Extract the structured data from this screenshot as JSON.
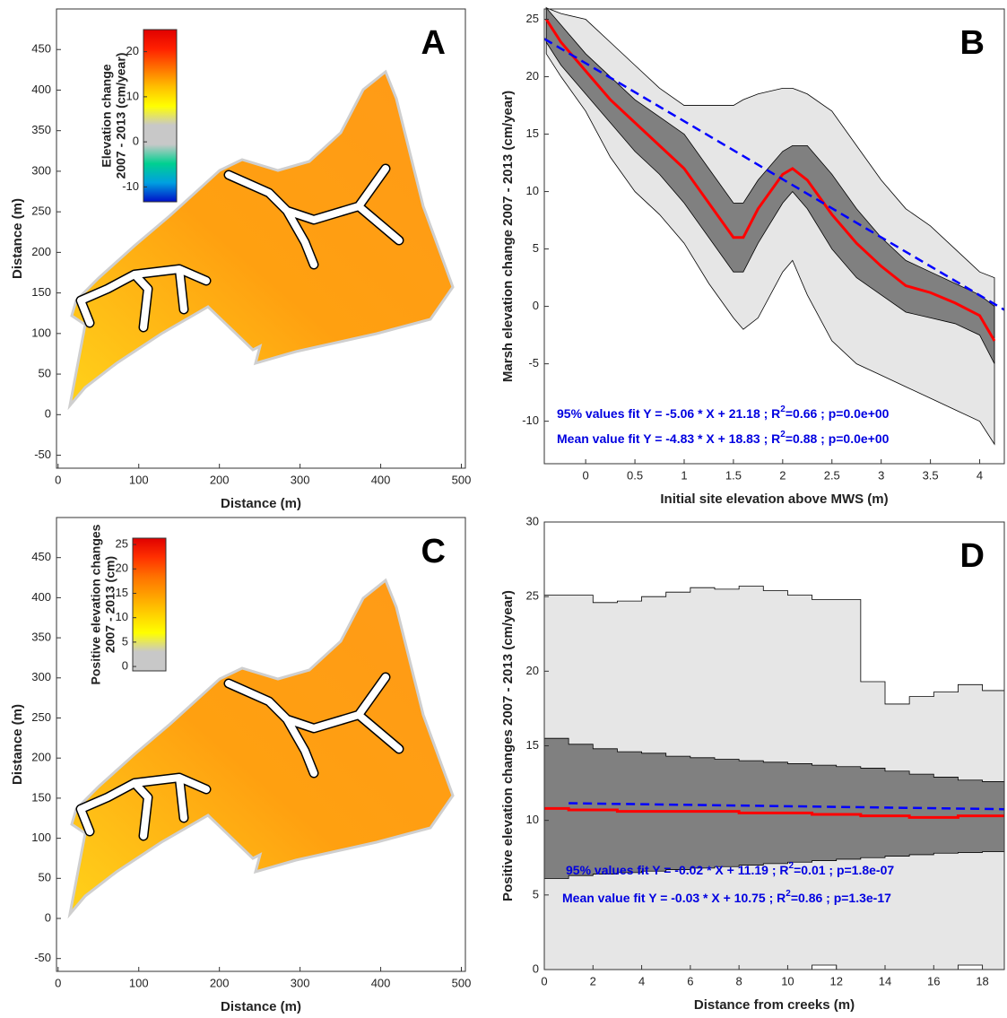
{
  "chart_data": [
    {
      "type": "map",
      "panel_label": "A",
      "xlabel": "Distance (m)",
      "ylabel": "Distance (m)",
      "xlim": [
        -2,
        505
      ],
      "xticks": [
        0,
        100,
        200,
        300,
        400,
        500
      ],
      "ylim": [
        -66,
        500
      ],
      "yticks": [
        -50,
        0,
        50,
        100,
        150,
        200,
        250,
        300,
        350,
        400,
        450
      ],
      "colorbar_label": [
        "Elevation change",
        "2007 - 2013 (cm/year)"
      ],
      "clim": [
        -13.3,
        24.9
      ],
      "cticks": [
        -10,
        0,
        10,
        20
      ],
      "colormap": [
        "#0010c8",
        "#00a0e0",
        "#00d090",
        "#c8c8c8",
        "#c8c8c8",
        "#ffff00",
        "#ffc000",
        "#ff7000",
        "#ff2000",
        "#e00000"
      ]
    },
    {
      "type": "line",
      "panel_label": "B",
      "xlabel": "Initial site elevation above MWS (m)",
      "ylabel": "Marsh elevation change 2007 - 2013 (cm/year)",
      "xlim": [
        -0.42,
        4.25
      ],
      "xticks": [
        0,
        0.5,
        1,
        1.5,
        2,
        2.5,
        3,
        3.5,
        4
      ],
      "ylim": [
        -13.7,
        25.9
      ],
      "yticks": [
        -10,
        -5,
        0,
        5,
        10,
        15,
        20,
        25
      ],
      "x": [
        -0.4,
        -0.25,
        0,
        0.25,
        0.5,
        0.75,
        1,
        1.25,
        1.5,
        1.6,
        1.75,
        2,
        2.1,
        2.25,
        2.5,
        2.75,
        3,
        3.25,
        3.5,
        3.75,
        4,
        4.15
      ],
      "bands": [
        {
          "color": "#e6e6e6",
          "upper": [
            26,
            25.5,
            25,
            23,
            21,
            19,
            17.5,
            17.5,
            17.5,
            18,
            18.5,
            19,
            19,
            18.5,
            17,
            14,
            11,
            8.5,
            7,
            5,
            3,
            2.5
          ],
          "lower": [
            22,
            20,
            17,
            13,
            10,
            8,
            5.5,
            2,
            -1,
            -2,
            -1,
            3,
            4,
            1,
            -3,
            -5,
            -6,
            -7,
            -8,
            -9,
            -10,
            -12
          ]
        },
        {
          "color": "#808080",
          "upper": [
            26,
            24.5,
            22,
            20,
            18,
            16.5,
            15,
            12,
            9,
            9,
            11,
            13.5,
            14,
            14,
            11.5,
            8.5,
            6,
            4,
            3,
            2,
            1,
            0
          ],
          "lower": [
            23,
            21,
            18.5,
            16,
            13.5,
            11.5,
            9,
            6,
            3,
            3,
            5.5,
            9,
            10,
            8.5,
            5,
            2.5,
            1,
            -0.5,
            -1,
            -1.5,
            -2.5,
            -5
          ]
        }
      ],
      "mean": {
        "color": "#ff0000",
        "values": [
          25,
          23,
          20.5,
          18,
          16,
          14,
          12,
          9,
          6,
          6,
          8.5,
          11.5,
          12,
          11,
          8,
          5.5,
          3.5,
          1.8,
          1.2,
          0.3,
          -0.8,
          -3
        ]
      },
      "fit": {
        "color": "#0000ff",
        "x": [
          -0.42,
          4.25
        ],
        "values": [
          23.3,
          -0.3
        ]
      },
      "annotations": [
        [
          "95% values fit Y = -5.06 * X + 21.18 ; R",
          "2",
          "=0.66 ; p=0.0e+00"
        ],
        [
          "Mean value fit Y = -4.83 * X + 18.83 ; R",
          "2",
          "=0.88 ; p=0.0e+00"
        ]
      ]
    },
    {
      "type": "map",
      "panel_label": "C",
      "xlabel": "Distance (m)",
      "ylabel": "Distance (m)",
      "xlim": [
        -2,
        505
      ],
      "xticks": [
        0,
        100,
        200,
        300,
        400,
        500
      ],
      "ylim": [
        -66,
        500
      ],
      "yticks": [
        -50,
        0,
        50,
        100,
        150,
        200,
        250,
        300,
        350,
        400,
        450
      ],
      "colorbar_label": [
        "Positive elevation changes",
        "2007 - 2013 (cm)"
      ],
      "clim": [
        -0.9,
        26.3
      ],
      "cticks": [
        0,
        5,
        10,
        15,
        20,
        25
      ],
      "colormap": [
        "#c8c8c8",
        "#c8c8c8",
        "#ffff00",
        "#ffd000",
        "#ffa000",
        "#ff7000",
        "#ff3000",
        "#e00000"
      ]
    },
    {
      "type": "step",
      "panel_label": "D",
      "xlabel": "Distance from creeks (m)",
      "ylabel": "Positive elevation changes 2007 - 2013 (cm/year)",
      "xlim": [
        0,
        18.9
      ],
      "xticks": [
        0,
        2,
        4,
        6,
        8,
        10,
        12,
        14,
        16,
        18
      ],
      "ylim": [
        0,
        30
      ],
      "yticks": [
        0,
        5,
        10,
        15,
        20,
        25,
        30
      ],
      "bins": [
        0,
        1,
        2,
        3,
        4,
        5,
        6,
        7,
        8,
        9,
        10,
        11,
        12,
        13,
        14,
        15,
        16,
        17,
        18,
        18.9
      ],
      "bands": [
        {
          "color": "#e6e6e6",
          "upper": [
            25.1,
            25.1,
            24.6,
            24.7,
            25,
            25.3,
            25.6,
            25.5,
            25.7,
            25.4,
            25.1,
            24.8,
            24.8,
            19.3,
            17.8,
            18.3,
            18.6,
            19.1,
            18.7
          ],
          "lower": [
            0,
            0,
            0,
            0,
            0,
            0,
            0,
            0,
            0,
            0,
            0,
            0.3,
            0,
            0,
            0,
            0,
            0,
            0.3,
            0
          ]
        },
        {
          "color": "#808080",
          "upper": [
            15.5,
            15.1,
            14.8,
            14.6,
            14.5,
            14.3,
            14.2,
            14.1,
            14,
            13.9,
            13.8,
            13.7,
            13.6,
            13.5,
            13.3,
            13.1,
            12.9,
            12.7,
            12.6
          ],
          "lower": [
            6.1,
            6.3,
            6.4,
            6.5,
            6.6,
            6.7,
            6.8,
            6.9,
            7,
            7.1,
            7.2,
            7.3,
            7.4,
            7.5,
            7.6,
            7.7,
            7.8,
            7.85,
            7.9
          ]
        }
      ],
      "mean": {
        "color": "#ff0000",
        "values": [
          10.8,
          10.7,
          10.7,
          10.6,
          10.6,
          10.6,
          10.6,
          10.6,
          10.5,
          10.5,
          10.5,
          10.4,
          10.4,
          10.3,
          10.3,
          10.2,
          10.2,
          10.3,
          10.3
        ]
      },
      "fit": {
        "color": "#0000ff",
        "x": [
          1,
          18.9
        ],
        "values": [
          11.15,
          10.75
        ]
      },
      "annotations": [
        [
          "95% values fit Y = -0.02 * X + 11.19 ; R",
          "2",
          "=0.01 ; p=1.8e-07"
        ],
        [
          "Mean value fit Y = -0.03 * X + 10.75 ; R",
          "2",
          "=0.86 ; p=1.3e-17"
        ]
      ]
    }
  ]
}
